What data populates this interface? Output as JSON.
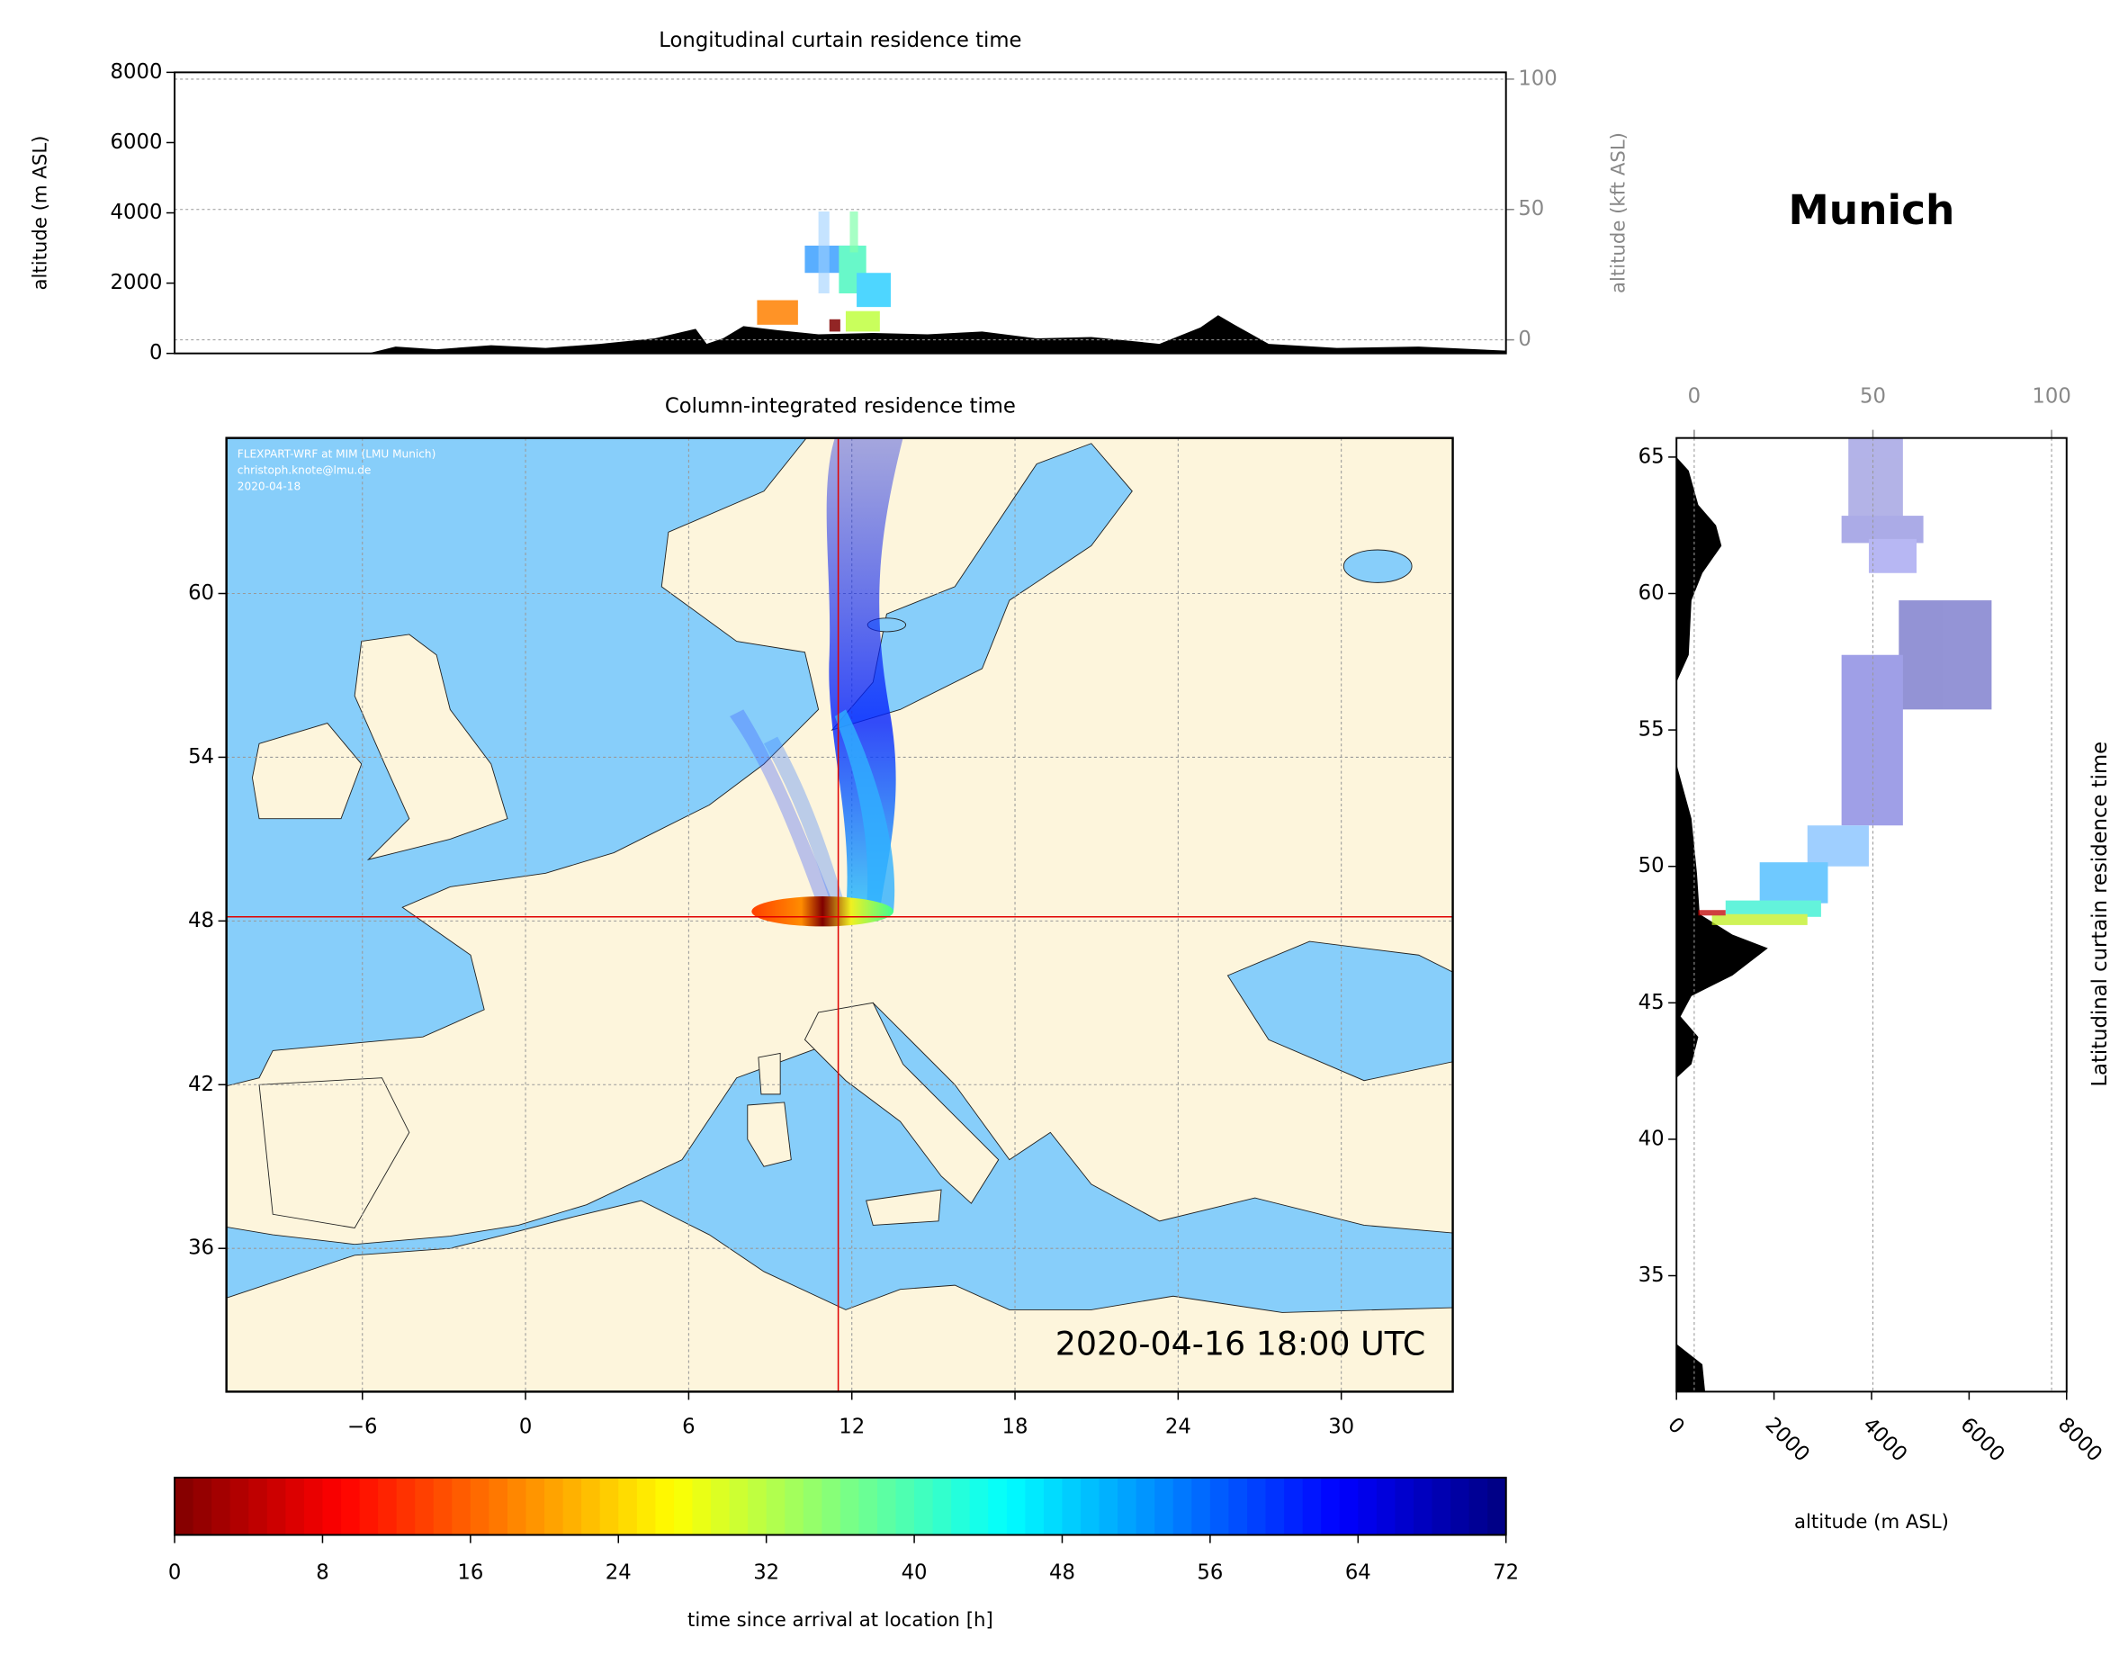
{
  "header": {
    "title": "Munich"
  },
  "chart_data": [
    {
      "type": "longitudinal-curtain",
      "title": "Longitudinal curtain residence time",
      "ylabel": "altitude (m ASL)",
      "ylim": [
        0,
        8000
      ],
      "yticks": [
        0,
        2000,
        4000,
        6000,
        8000
      ],
      "y2label": "altitude (kft ASL)",
      "y2lim": [
        -5.2,
        102.6
      ],
      "y2ticks": [
        0,
        50,
        100
      ]
    },
    {
      "type": "map",
      "title": "Column-integrated residence time",
      "xlim": [
        -11,
        34.1
      ],
      "xticks": [
        {
          "value": -6,
          "label": "−6"
        },
        0,
        6,
        12,
        18,
        24,
        30
      ],
      "ylim": [
        30.75,
        65.7
      ],
      "yticks": [
        36,
        42,
        48,
        54,
        60
      ],
      "grid": true,
      "annotations": [
        "FLEXPART-WRF at MIM (LMU Munich)",
        "christoph.knote@lmu.de",
        "2020-04-18"
      ],
      "timestamp": "2020-04-16 18:00 UTC",
      "location": {
        "lon": 11.5,
        "lat": 48.15
      }
    },
    {
      "type": "latitudinal-curtain",
      "title": "Latitudinal curtain residence time",
      "xlabel": "altitude (m ASL)",
      "xlim": [
        0,
        8000
      ],
      "xticks": [
        0,
        2000,
        4000,
        6000,
        8000
      ],
      "x2lim": [
        -4.96,
        104.2
      ],
      "x2ticks": [
        0,
        50,
        100
      ],
      "ylim": [
        30.75,
        65.7
      ],
      "yticks": [
        35,
        40,
        45,
        50,
        55,
        60,
        65
      ]
    },
    {
      "type": "colorbar",
      "label": "time since arrival at location [h]",
      "clim": [
        0,
        72
      ],
      "ticks": [
        0,
        8,
        16,
        24,
        32,
        40,
        48,
        56,
        64,
        72
      ],
      "colormap": "jet"
    }
  ]
}
